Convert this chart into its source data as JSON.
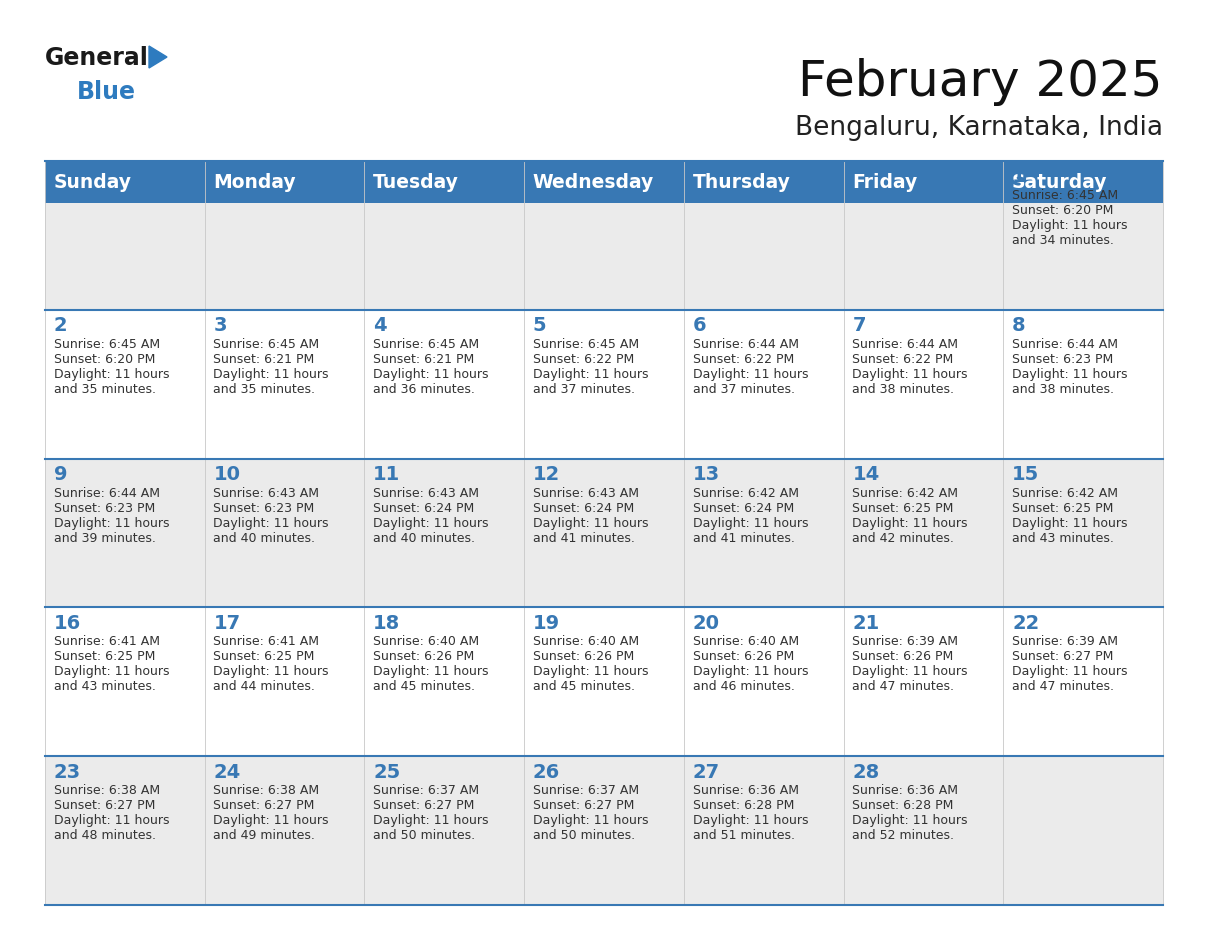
{
  "title": "February 2025",
  "subtitle": "Bengaluru, Karnataka, India",
  "header_bg": "#3878b4",
  "header_text_color": "#ffffff",
  "day_names": [
    "Sunday",
    "Monday",
    "Tuesday",
    "Wednesday",
    "Thursday",
    "Friday",
    "Saturday"
  ],
  "cell_bg_odd": "#ebebeb",
  "cell_bg_even": "#ffffff",
  "border_color": "#3878b4",
  "day_num_color": "#3878b4",
  "text_color": "#333333",
  "logo_general_color": "#1a1a1a",
  "logo_blue_color": "#2e7bbf",
  "figwidth": 11.88,
  "figheight": 9.18,
  "dpi": 100,
  "weeks": [
    [
      {
        "day": null,
        "sunrise": null,
        "sunset": null,
        "daylight": null
      },
      {
        "day": null,
        "sunrise": null,
        "sunset": null,
        "daylight": null
      },
      {
        "day": null,
        "sunrise": null,
        "sunset": null,
        "daylight": null
      },
      {
        "day": null,
        "sunrise": null,
        "sunset": null,
        "daylight": null
      },
      {
        "day": null,
        "sunrise": null,
        "sunset": null,
        "daylight": null
      },
      {
        "day": null,
        "sunrise": null,
        "sunset": null,
        "daylight": null
      },
      {
        "day": 1,
        "sunrise": "6:45 AM",
        "sunset": "6:20 PM",
        "daylight": "11 hours and 34 minutes."
      }
    ],
    [
      {
        "day": 2,
        "sunrise": "6:45 AM",
        "sunset": "6:20 PM",
        "daylight": "11 hours and 35 minutes."
      },
      {
        "day": 3,
        "sunrise": "6:45 AM",
        "sunset": "6:21 PM",
        "daylight": "11 hours and 35 minutes."
      },
      {
        "day": 4,
        "sunrise": "6:45 AM",
        "sunset": "6:21 PM",
        "daylight": "11 hours and 36 minutes."
      },
      {
        "day": 5,
        "sunrise": "6:45 AM",
        "sunset": "6:22 PM",
        "daylight": "11 hours and 37 minutes."
      },
      {
        "day": 6,
        "sunrise": "6:44 AM",
        "sunset": "6:22 PM",
        "daylight": "11 hours and 37 minutes."
      },
      {
        "day": 7,
        "sunrise": "6:44 AM",
        "sunset": "6:22 PM",
        "daylight": "11 hours and 38 minutes."
      },
      {
        "day": 8,
        "sunrise": "6:44 AM",
        "sunset": "6:23 PM",
        "daylight": "11 hours and 38 minutes."
      }
    ],
    [
      {
        "day": 9,
        "sunrise": "6:44 AM",
        "sunset": "6:23 PM",
        "daylight": "11 hours and 39 minutes."
      },
      {
        "day": 10,
        "sunrise": "6:43 AM",
        "sunset": "6:23 PM",
        "daylight": "11 hours and 40 minutes."
      },
      {
        "day": 11,
        "sunrise": "6:43 AM",
        "sunset": "6:24 PM",
        "daylight": "11 hours and 40 minutes."
      },
      {
        "day": 12,
        "sunrise": "6:43 AM",
        "sunset": "6:24 PM",
        "daylight": "11 hours and 41 minutes."
      },
      {
        "day": 13,
        "sunrise": "6:42 AM",
        "sunset": "6:24 PM",
        "daylight": "11 hours and 41 minutes."
      },
      {
        "day": 14,
        "sunrise": "6:42 AM",
        "sunset": "6:25 PM",
        "daylight": "11 hours and 42 minutes."
      },
      {
        "day": 15,
        "sunrise": "6:42 AM",
        "sunset": "6:25 PM",
        "daylight": "11 hours and 43 minutes."
      }
    ],
    [
      {
        "day": 16,
        "sunrise": "6:41 AM",
        "sunset": "6:25 PM",
        "daylight": "11 hours and 43 minutes."
      },
      {
        "day": 17,
        "sunrise": "6:41 AM",
        "sunset": "6:25 PM",
        "daylight": "11 hours and 44 minutes."
      },
      {
        "day": 18,
        "sunrise": "6:40 AM",
        "sunset": "6:26 PM",
        "daylight": "11 hours and 45 minutes."
      },
      {
        "day": 19,
        "sunrise": "6:40 AM",
        "sunset": "6:26 PM",
        "daylight": "11 hours and 45 minutes."
      },
      {
        "day": 20,
        "sunrise": "6:40 AM",
        "sunset": "6:26 PM",
        "daylight": "11 hours and 46 minutes."
      },
      {
        "day": 21,
        "sunrise": "6:39 AM",
        "sunset": "6:26 PM",
        "daylight": "11 hours and 47 minutes."
      },
      {
        "day": 22,
        "sunrise": "6:39 AM",
        "sunset": "6:27 PM",
        "daylight": "11 hours and 47 minutes."
      }
    ],
    [
      {
        "day": 23,
        "sunrise": "6:38 AM",
        "sunset": "6:27 PM",
        "daylight": "11 hours and 48 minutes."
      },
      {
        "day": 24,
        "sunrise": "6:38 AM",
        "sunset": "6:27 PM",
        "daylight": "11 hours and 49 minutes."
      },
      {
        "day": 25,
        "sunrise": "6:37 AM",
        "sunset": "6:27 PM",
        "daylight": "11 hours and 50 minutes."
      },
      {
        "day": 26,
        "sunrise": "6:37 AM",
        "sunset": "6:27 PM",
        "daylight": "11 hours and 50 minutes."
      },
      {
        "day": 27,
        "sunrise": "6:36 AM",
        "sunset": "6:28 PM",
        "daylight": "11 hours and 51 minutes."
      },
      {
        "day": 28,
        "sunrise": "6:36 AM",
        "sunset": "6:28 PM",
        "daylight": "11 hours and 52 minutes."
      },
      {
        "day": null,
        "sunrise": null,
        "sunset": null,
        "daylight": null
      }
    ]
  ]
}
